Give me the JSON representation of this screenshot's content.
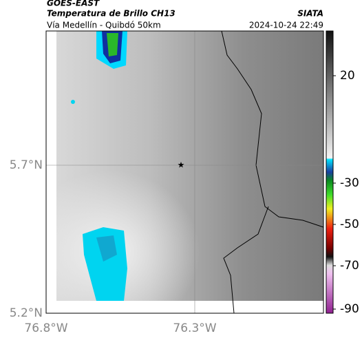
{
  "header": {
    "title": "GOES-EAST",
    "subtitle": "Temperatura de Brillo CH13",
    "source": "SIATA",
    "route": "Vía Medellín - Quibdó 50km",
    "timestamp": "2024-10-24 22:49"
  },
  "map": {
    "y_labels": [
      "5.7°N",
      "5.2°N"
    ],
    "x_labels": [
      "76.8°W",
      "76.3°W"
    ]
  },
  "colorbar": {
    "ticks": [
      20,
      -30,
      -50,
      -70,
      -90
    ]
  }
}
